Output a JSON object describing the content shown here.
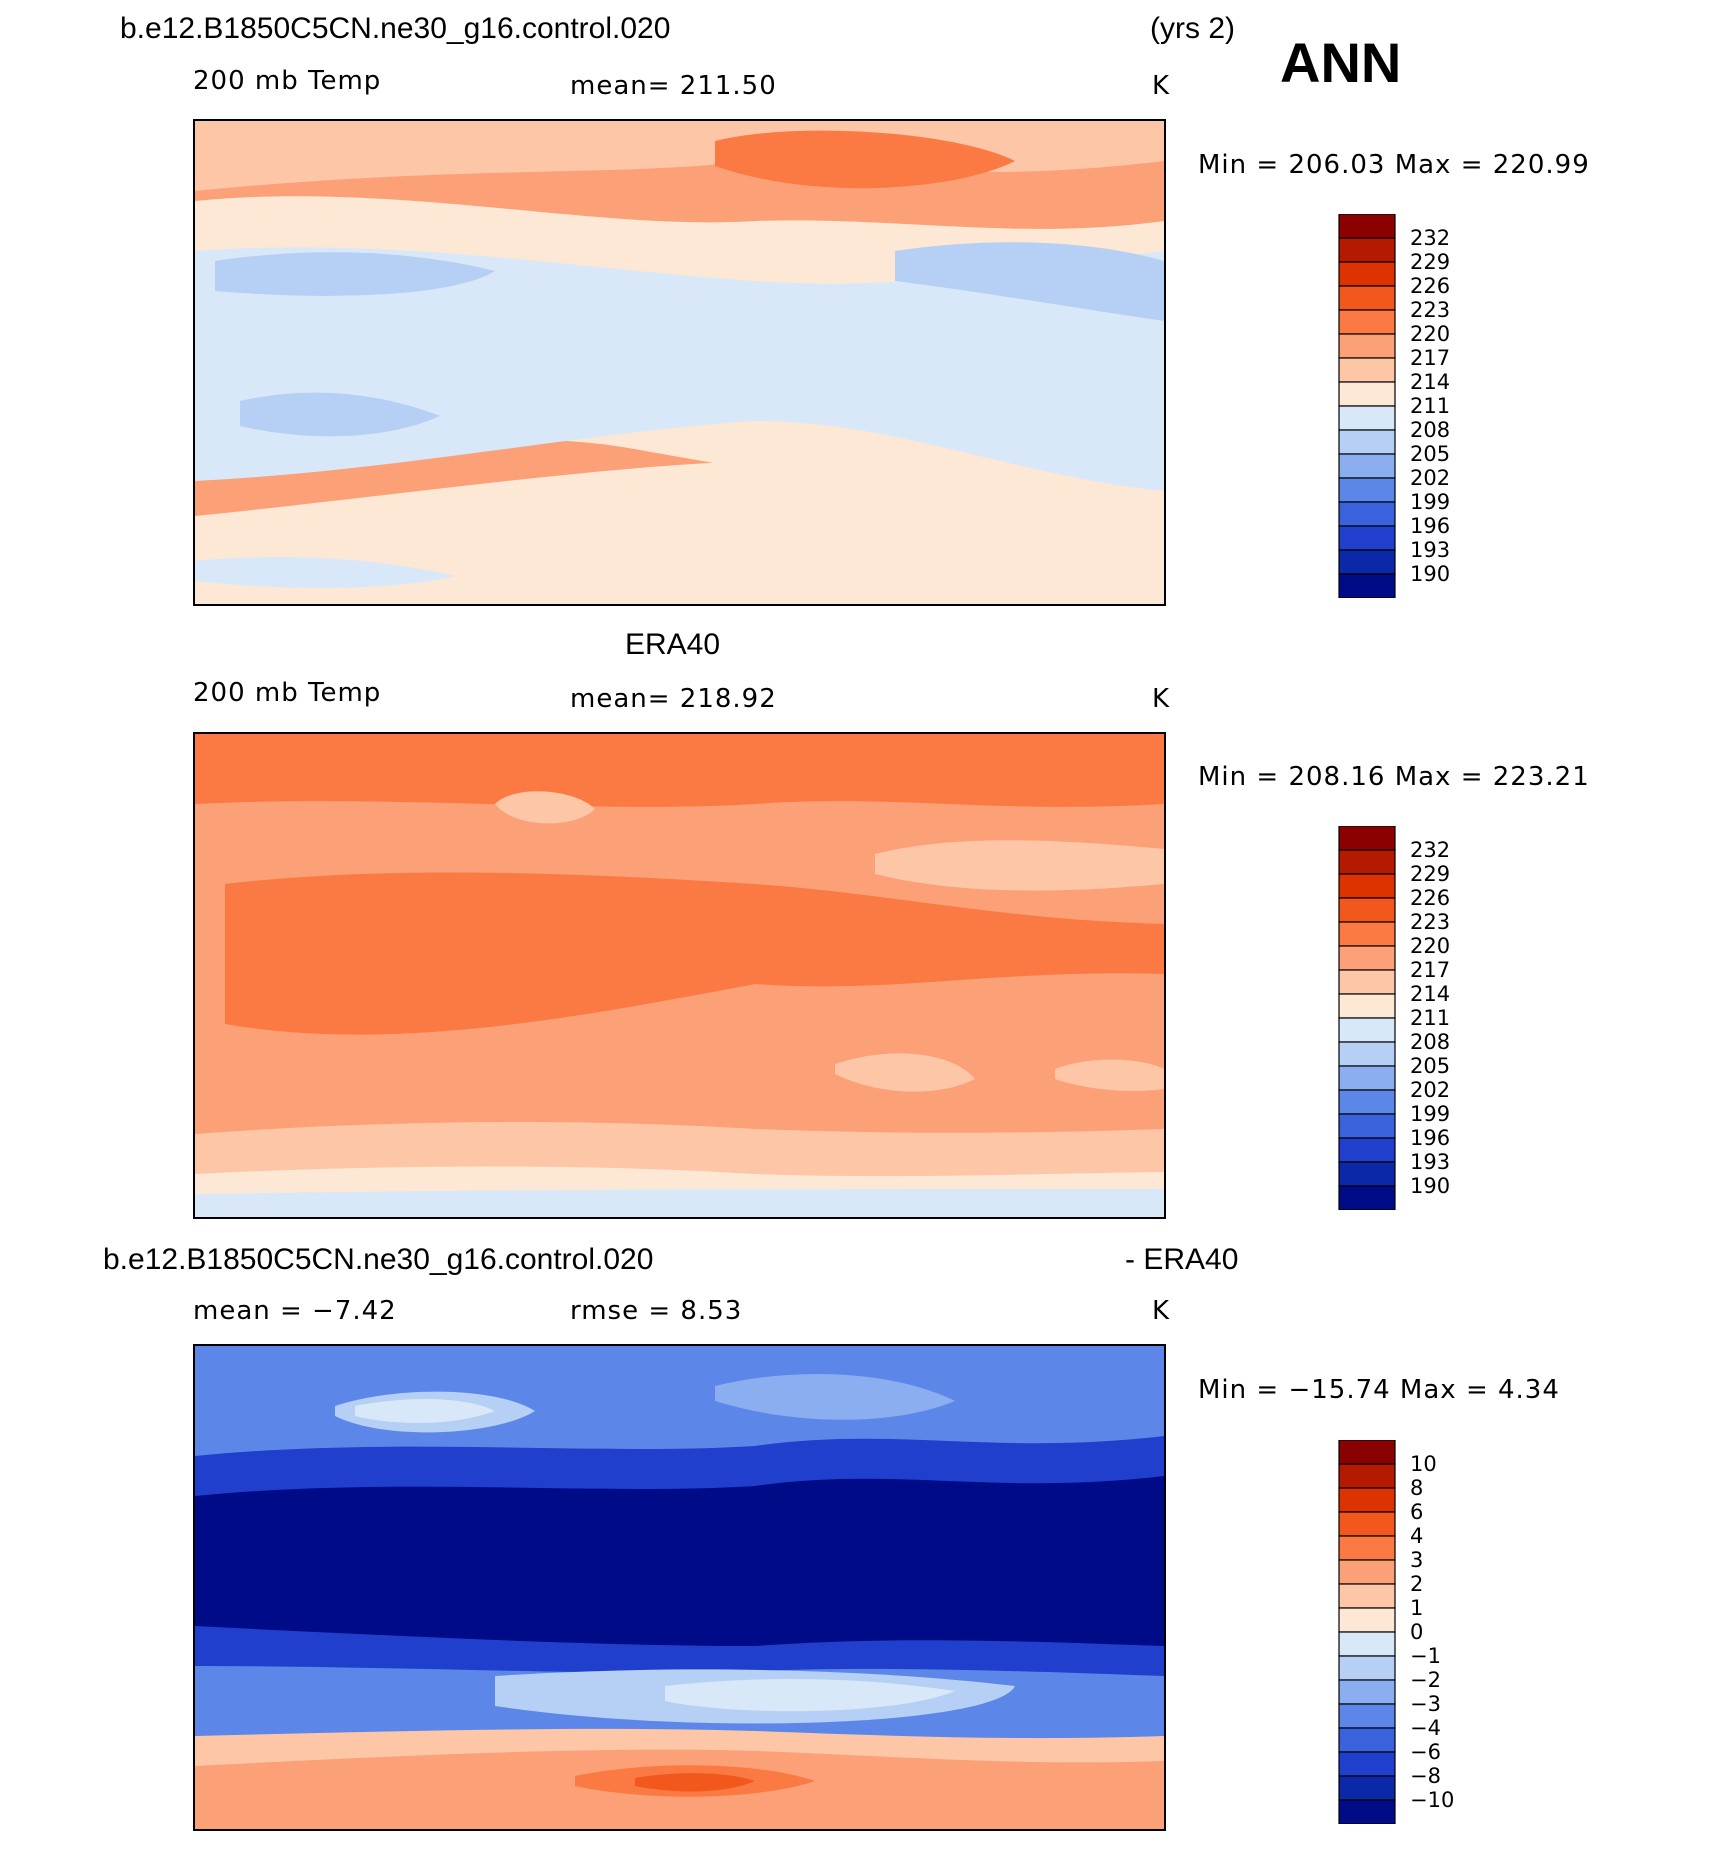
{
  "header": {
    "case": "b.e12.B1850C5CN.ne30_g16.control.020",
    "yrs": "(yrs 2)",
    "season": "ANN"
  },
  "panels": [
    {
      "title": "b.e12.B1850C5CN.ne30_g16.control.020",
      "variable": "200 mb Temp",
      "stat": "mean=  211.50",
      "units": "K",
      "minmax": "Min  =  206.03  Max  =  220.99",
      "colorbar": {
        "labels": [
          "232",
          "229",
          "226",
          "223",
          "220",
          "217",
          "214",
          "211",
          "208",
          "205",
          "202",
          "199",
          "196",
          "193",
          "190"
        ],
        "colors": [
          "#8b0000",
          "#b41a00",
          "#dd3300",
          "#f2571c",
          "#fb7a44",
          "#fca077",
          "#fdc6a6",
          "#fde8d6",
          "#d8e8f8",
          "#b5cff5",
          "#8aaef0",
          "#5c87e8",
          "#3a62dd",
          "#1f3fcc",
          "#0a28a8",
          "#000c87"
        ]
      }
    },
    {
      "title": "ERA40",
      "variable": "200 mb Temp",
      "stat": "mean=  218.92",
      "units": "K",
      "minmax": "Min  =  208.16  Max  =  223.21",
      "colorbar": {
        "labels": [
          "232",
          "229",
          "226",
          "223",
          "220",
          "217",
          "214",
          "211",
          "208",
          "205",
          "202",
          "199",
          "196",
          "193",
          "190"
        ],
        "colors": [
          "#8b0000",
          "#b41a00",
          "#dd3300",
          "#f2571c",
          "#fb7a44",
          "#fca077",
          "#fdc6a6",
          "#fde8d6",
          "#d8e8f8",
          "#b5cff5",
          "#8aaef0",
          "#5c87e8",
          "#3a62dd",
          "#1f3fcc",
          "#0a28a8",
          "#000c87"
        ]
      }
    },
    {
      "title": "b.e12.B1850C5CN.ne30_g16.control.020",
      "title_right": "- ERA40",
      "variable": "mean =    −7.42",
      "stat": "rmse =     8.53",
      "units": "K",
      "minmax": "Min  =  −15.74  Max  =     4.34",
      "colorbar": {
        "labels": [
          "10",
          "8",
          "6",
          "4",
          "3",
          "2",
          "1",
          "0",
          "−1",
          "−2",
          "−3",
          "−4",
          "−6",
          "−8",
          "−10"
        ],
        "colors": [
          "#8b0000",
          "#b41a00",
          "#dd3300",
          "#f2571c",
          "#fb7a44",
          "#fca077",
          "#fdc6a6",
          "#fde8d6",
          "#d8e8f8",
          "#b5cff5",
          "#8aaef0",
          "#5c87e8",
          "#3a62dd",
          "#1f3fcc",
          "#0a28a8",
          "#000c87"
        ]
      }
    }
  ]
}
